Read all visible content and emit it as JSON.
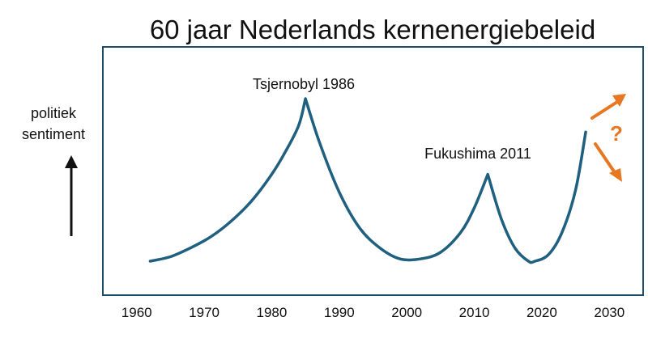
{
  "chart_data": {
    "type": "line",
    "title": "60 jaar Nederlands kernenergiebeleid",
    "ylabel": [
      "politiek",
      "sentiment"
    ],
    "xlabel": "",
    "xlim": [
      1955,
      2035
    ],
    "x_ticks": [
      1960,
      1970,
      1980,
      1990,
      2000,
      2010,
      2020,
      2030
    ],
    "series": [
      {
        "x": [
          1962,
          1965,
          1968,
          1971,
          1974,
          1977,
          1980,
          1982,
          1984,
          1985,
          1987,
          1990,
          1993,
          1996,
          1999,
          2002,
          2005,
          2008,
          2010,
          2012,
          2014,
          2016,
          2018,
          2019,
          2021,
          2023,
          2025,
          2026.5
        ],
        "y": [
          0.0,
          0.02,
          0.06,
          0.11,
          0.18,
          0.27,
          0.39,
          0.49,
          0.61,
          0.73,
          0.54,
          0.31,
          0.15,
          0.06,
          0.01,
          0.01,
          0.04,
          0.13,
          0.24,
          0.39,
          0.19,
          0.06,
          0.0,
          0.0,
          0.03,
          0.13,
          0.32,
          0.58
        ]
      }
    ],
    "annotations": [
      {
        "text": "Tsjernobyl 1986"
      },
      {
        "text": "Fukushima 2011"
      },
      {
        "text": "?"
      }
    ],
    "grid": false,
    "legend": "none",
    "colors": {
      "line": "#1f5f7f",
      "frame": "#1f4e6b",
      "accent": "#e87722",
      "text": "#111111"
    }
  }
}
